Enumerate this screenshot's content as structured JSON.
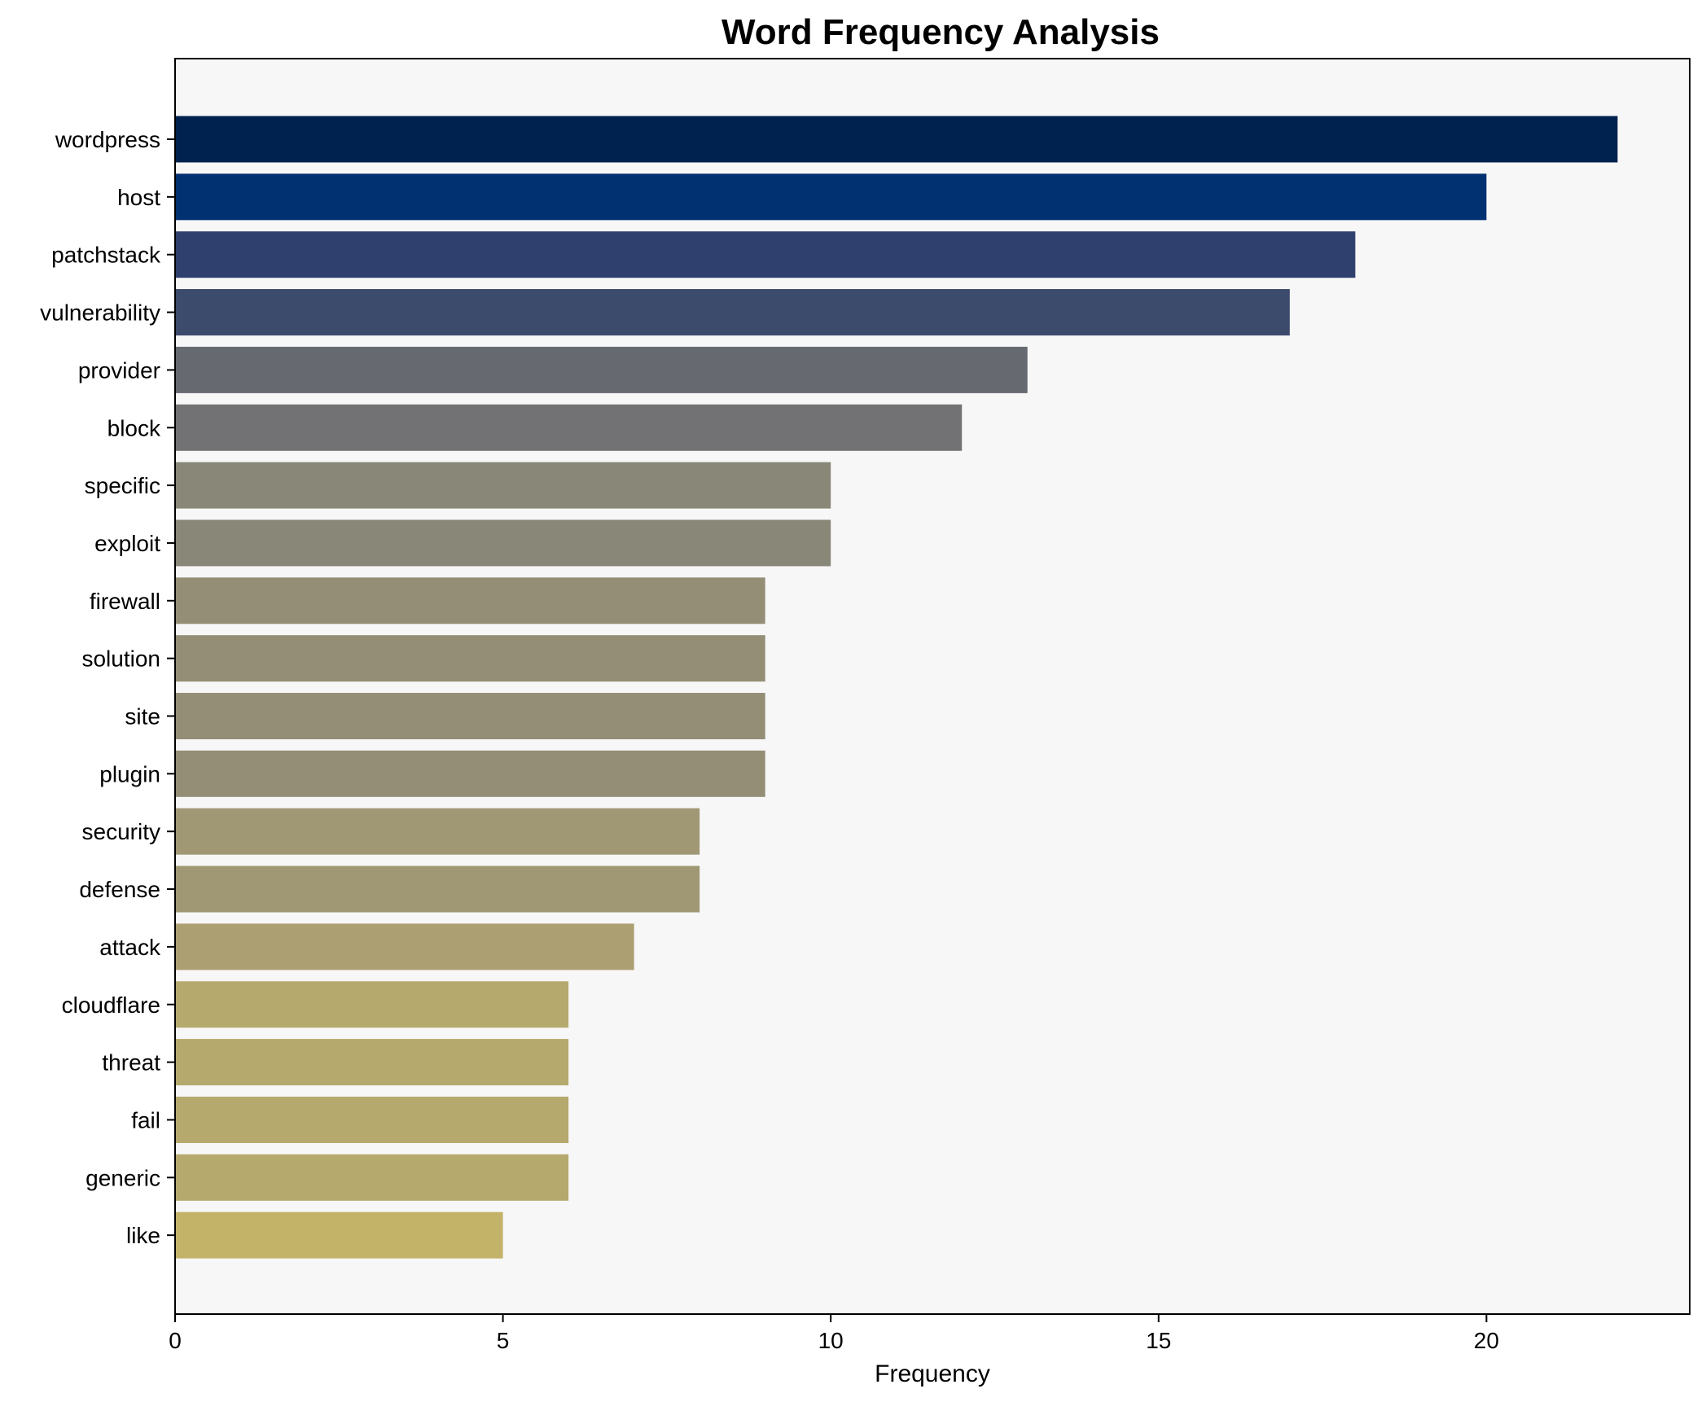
{
  "chart_data": {
    "type": "bar",
    "orientation": "horizontal",
    "title": "Word Frequency Analysis",
    "xlabel": "Frequency",
    "ylabel": "",
    "xlim": [
      0,
      23.1
    ],
    "xticks": [
      0,
      5,
      10,
      15,
      20
    ],
    "grid": false,
    "legend": "none",
    "plot_background": "#f7f7f7",
    "categories": [
      "wordpress",
      "host",
      "patchstack",
      "vulnerability",
      "provider",
      "block",
      "specific",
      "exploit",
      "firewall",
      "solution",
      "site",
      "plugin",
      "security",
      "defense",
      "attack",
      "cloudflare",
      "threat",
      "fail",
      "generic",
      "like"
    ],
    "values": [
      22,
      20,
      18,
      17,
      13,
      12,
      10,
      10,
      9,
      9,
      9,
      9,
      8,
      8,
      7,
      6,
      6,
      6,
      6,
      5
    ],
    "colors": [
      "#00224e",
      "#023172",
      "#2f406e",
      "#3c4a6c",
      "#666970",
      "#727274",
      "#898777",
      "#898777",
      "#948e77",
      "#948e77",
      "#948e77",
      "#948e77",
      "#a09775",
      "#a09775",
      "#aca072",
      "#b5a96d",
      "#b5a96d",
      "#b5a96d",
      "#b5a96d",
      "#c3b369"
    ]
  }
}
